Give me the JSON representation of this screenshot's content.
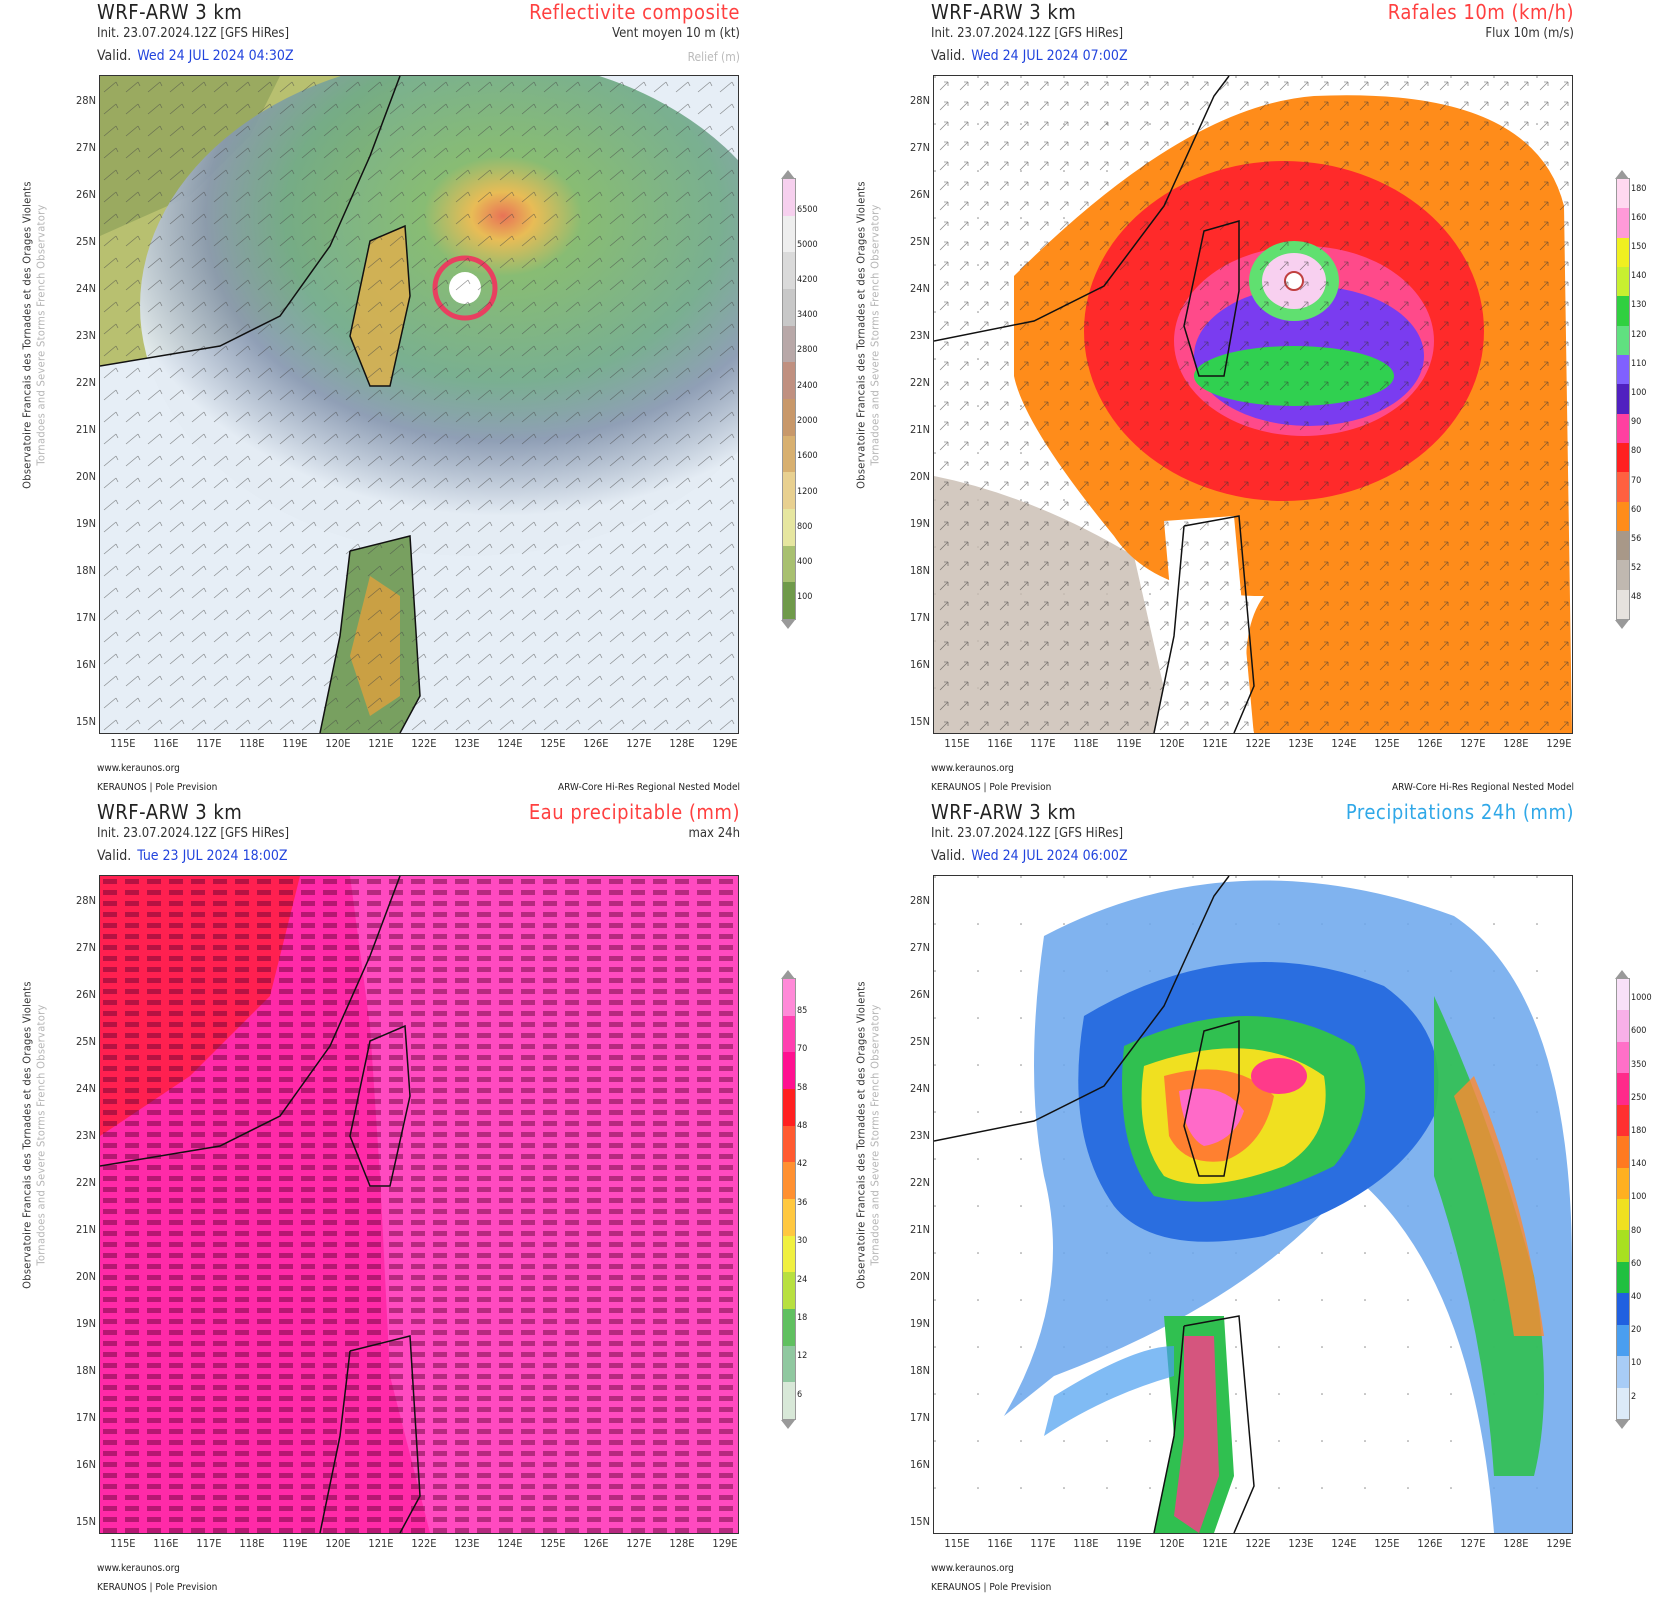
{
  "side_text": {
    "line1": "Observatoire Francais des Tornades et des Orages Violents",
    "line2": "Tornadoes and Severe Storms French Observatory"
  },
  "latitudes": [
    "28N",
    "27N",
    "26N",
    "25N",
    "24N",
    "23N",
    "22N",
    "21N",
    "20N",
    "19N",
    "18N",
    "17N",
    "16N",
    "15N"
  ],
  "longitudes": [
    "115E",
    "116E",
    "117E",
    "118E",
    "119E",
    "120E",
    "121E",
    "122E",
    "123E",
    "124E",
    "125E",
    "126E",
    "127E",
    "128E",
    "129E"
  ],
  "panels": [
    {
      "model": "WRF-ARW 3 km",
      "init": "Init.   23.07.2024.12Z  [GFS HiRes]",
      "valid_label": "Valid.",
      "valid": "Wed 24 JUL 2024 04:30Z",
      "param": "Reflectivite composite",
      "param_color": "#ff4040",
      "sub1": "Vent moyen 10 m (kt)",
      "sub2": "Relief (m)",
      "cbar_ticks": [
        "6500",
        "5000",
        "4200",
        "3400",
        "2800",
        "2400",
        "2000",
        "1600",
        "1200",
        "800",
        "400",
        "100"
      ],
      "cbar_colors": [
        "#f6d0ee",
        "#eeeeee",
        "#dadada",
        "#c8c8c8",
        "#b8a8a8",
        "#c09080",
        "#c8986a",
        "#d8b070",
        "#e8d090",
        "#e6e6a0",
        "#a8c070",
        "#6f9a4a"
      ],
      "site": "www.keraunos.org",
      "brand": "KERAUNOS | Pole Prevision",
      "model_desc": "ARW-Core Hi-Res Regional Nested Model"
    },
    {
      "model": "WRF-ARW 3 km",
      "init": "Init.   23.07.2024.12Z  [GFS HiRes]",
      "valid_label": "Valid.",
      "valid": "Wed 24 JUL 2024 07:00Z",
      "param": "Rafales 10m (km/h)",
      "param_color": "#ff4040",
      "sub1": "Flux 10m (m/s)",
      "sub2": "",
      "cbar_ticks": [
        "180",
        "160",
        "150",
        "140",
        "130",
        "120",
        "110",
        "100",
        "90",
        "80",
        "70",
        "60",
        "56",
        "52",
        "48"
      ],
      "cbar_colors": [
        "#ffd8f0",
        "#ff9ad8",
        "#f0f020",
        "#c8f030",
        "#30d040",
        "#60e080",
        "#8060ff",
        "#5020c0",
        "#ff40a0",
        "#ff2020",
        "#ff6040",
        "#ff8c1a",
        "#a89888",
        "#c0b8b0",
        "#e6e2de"
      ],
      "site": "www.keraunos.org",
      "brand": "KERAUNOS | Pole Prevision",
      "model_desc": "ARW-Core Hi-Res Regional Nested Model"
    },
    {
      "model": "WRF-ARW 3 km",
      "init": "Init.   23.07.2024.12Z  [GFS HiRes]",
      "valid_label": "Valid.",
      "valid": "Tue 23 JUL 2024 18:00Z",
      "param": "Eau precipitable (mm)",
      "param_color": "#ff4040",
      "sub1": "max 24h",
      "sub2": "",
      "cbar_ticks": [
        "85",
        "70",
        "58",
        "48",
        "42",
        "36",
        "30",
        "24",
        "18",
        "12",
        "6"
      ],
      "cbar_colors": [
        "#ff8ad8",
        "#ff40b0",
        "#ff1090",
        "#ff2020",
        "#ff5a30",
        "#ff9030",
        "#ffc840",
        "#f0f040",
        "#b8e040",
        "#60c060",
        "#90c8a0",
        "#d8e8d8"
      ],
      "site": "www.keraunos.org",
      "brand": "KERAUNOS | Pole Prevision",
      "model_desc": ""
    },
    {
      "model": "WRF-ARW 3 km",
      "init": "Init.   23.07.2024.12Z  [GFS HiRes]",
      "valid_label": "Valid.",
      "valid": "Wed 24 JUL 2024 06:00Z",
      "param": "Precipitations 24h (mm)",
      "param_color": "#30a8e8",
      "sub1": "",
      "sub2": "",
      "cbar_ticks": [
        "1000",
        "600",
        "350",
        "250",
        "180",
        "140",
        "100",
        "80",
        "60",
        "40",
        "20",
        "10",
        "2"
      ],
      "cbar_colors": [
        "#f8e0f8",
        "#f8b0e8",
        "#ff70c8",
        "#ff2a8a",
        "#ff3030",
        "#ff7a20",
        "#ffb020",
        "#f0e020",
        "#a8e020",
        "#20c040",
        "#2060e0",
        "#4a9ef0",
        "#a8ccf6",
        "#dceaf8"
      ],
      "site": "www.keraunos.org",
      "brand": "KERAUNOS | Pole Prevision",
      "model_desc": ""
    }
  ]
}
